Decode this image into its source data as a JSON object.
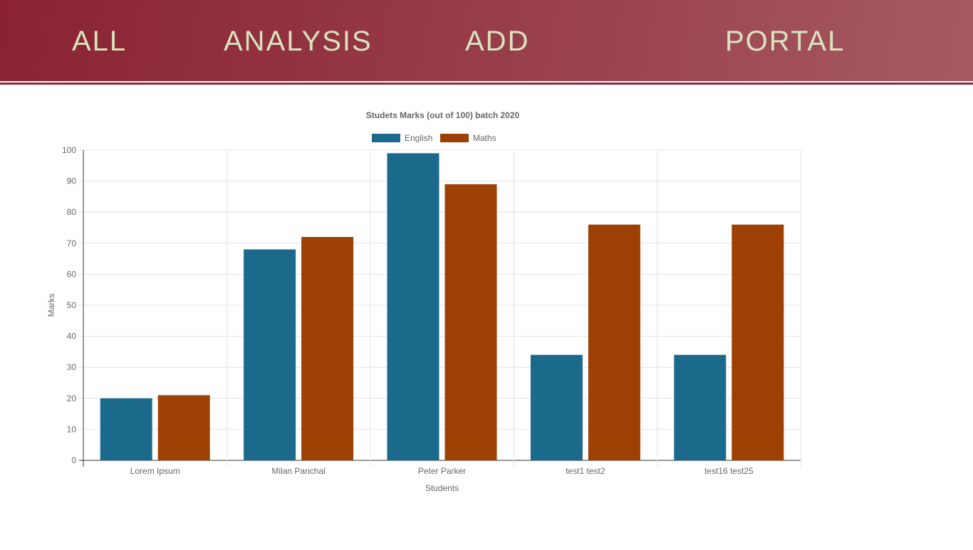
{
  "nav": {
    "items": [
      {
        "label": "ALL"
      },
      {
        "label": "ANALYSIS"
      },
      {
        "label": "ADD"
      },
      {
        "label": "PORTAL"
      }
    ]
  },
  "colors": {
    "header": "#8a2232",
    "nav_text": "#d9e3bf",
    "english": "#1b6a8c",
    "maths": "#9e4003"
  },
  "chart_data": {
    "type": "bar",
    "title": "Studets Marks (out of 100) batch 2020",
    "xlabel": "Students",
    "ylabel": "Marks",
    "ylim": [
      0,
      100
    ],
    "yticks": [
      "0",
      "10",
      "20",
      "30",
      "40",
      "50",
      "60",
      "70",
      "80",
      "90",
      "100"
    ],
    "grid": true,
    "legend": "top-center",
    "categories": [
      "Lorem Ipsum",
      "Milan Panchal",
      "Peter Parker",
      "test1 test2",
      "test16 test25"
    ],
    "series": [
      {
        "name": "English",
        "color": "#1b6a8c",
        "values": [
          20,
          68,
          99,
          34,
          34
        ]
      },
      {
        "name": "Maths",
        "color": "#9e4003",
        "values": [
          21,
          72,
          89,
          76,
          76
        ]
      }
    ]
  }
}
